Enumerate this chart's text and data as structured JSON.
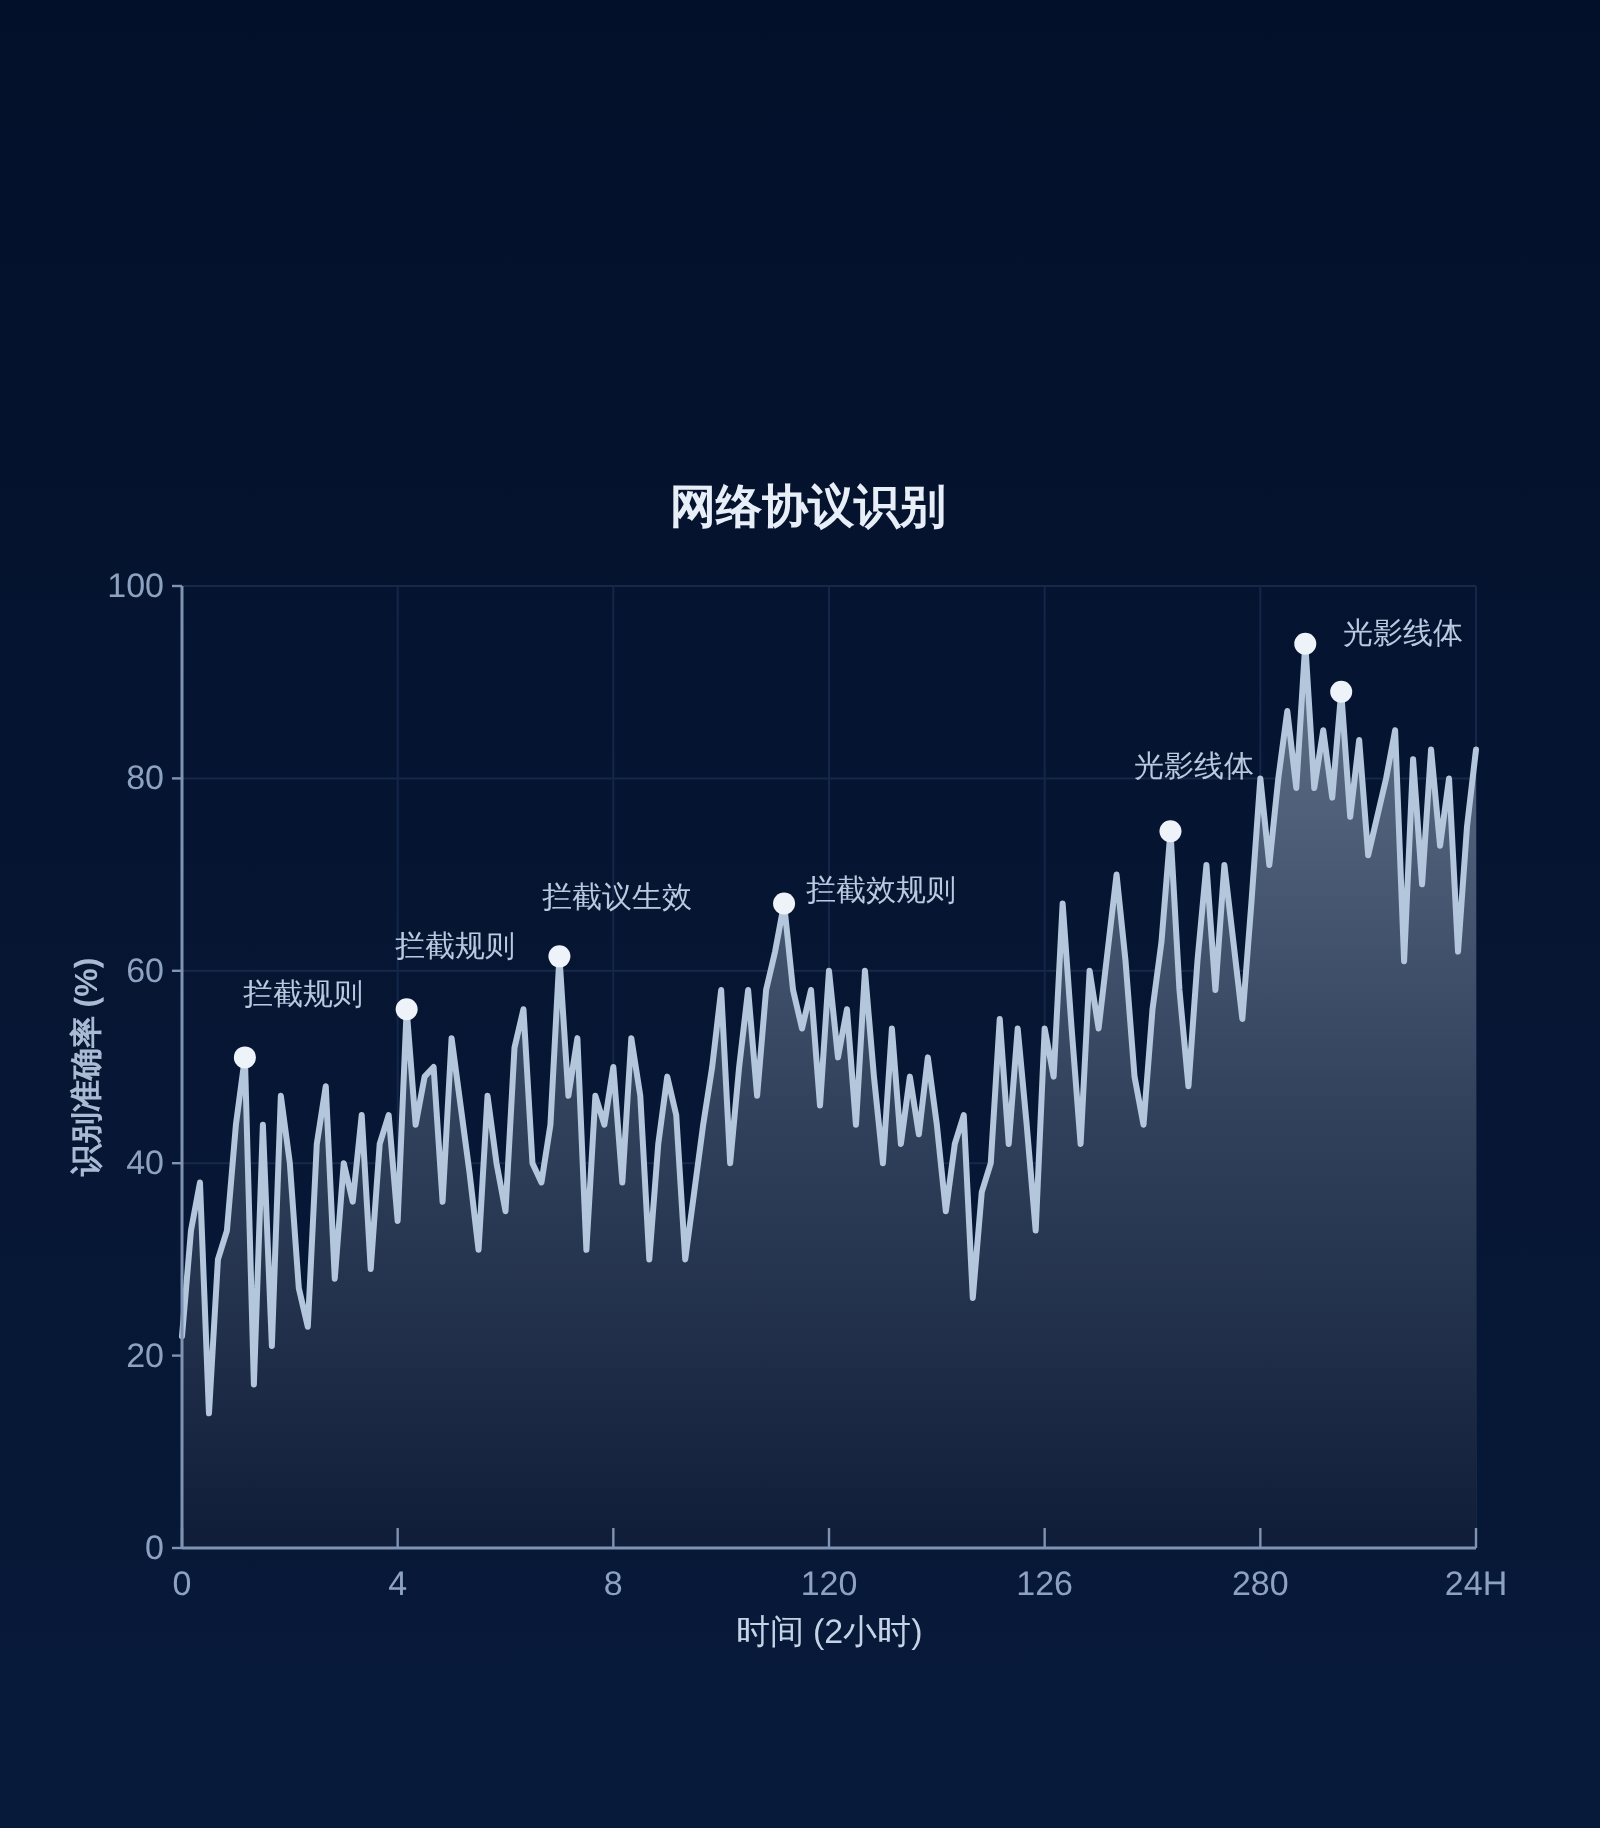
{
  "chart_data": {
    "type": "area",
    "title": "网络协议识别",
    "xlabel": "时间 (2小时)",
    "ylabel": "识别准确率 (%)",
    "categories": [
      "0",
      null,
      null,
      null,
      null,
      null,
      null,
      null,
      null,
      null,
      null,
      null,
      null,
      null,
      null,
      null,
      null,
      null,
      null,
      null,
      null,
      null,
      null,
      null,
      "4",
      null,
      null,
      null,
      null,
      null,
      null,
      null,
      null,
      null,
      null,
      null,
      null,
      null,
      null,
      null,
      null,
      null,
      null,
      null,
      null,
      null,
      null,
      null,
      "8",
      null,
      null,
      null,
      null,
      null,
      null,
      null,
      null,
      null,
      null,
      null,
      null,
      null,
      null,
      null,
      null,
      null,
      null,
      null,
      null,
      null,
      null,
      null,
      "120",
      null,
      null,
      null,
      null,
      null,
      null,
      null,
      null,
      null,
      null,
      null,
      null,
      null,
      null,
      null,
      null,
      null,
      null,
      null,
      null,
      null,
      null,
      null,
      "126",
      null,
      null,
      null,
      null,
      null,
      null,
      null,
      null,
      null,
      null,
      null,
      null,
      null,
      null,
      null,
      null,
      null,
      null,
      null,
      null,
      null,
      null,
      null,
      "280",
      null,
      null,
      null,
      null,
      null,
      null,
      null,
      null,
      null,
      null,
      null,
      null,
      null,
      null,
      null,
      null,
      null,
      null,
      null,
      null,
      null,
      null,
      null,
      "24H"
    ],
    "ylim": [
      0,
      100
    ],
    "yticks": [
      0,
      20,
      40,
      60,
      80,
      100
    ],
    "grid": true,
    "series": [
      {
        "color": "#b4c6dc",
        "line_style": "solid",
        "values": [
          22,
          33,
          38,
          14,
          30,
          33,
          44,
          51,
          17,
          44,
          21,
          47,
          40,
          27,
          23,
          42,
          48,
          28,
          40,
          36,
          45,
          29,
          42,
          45,
          34,
          56,
          44,
          49,
          50,
          36,
          53,
          46,
          39,
          31,
          47,
          40,
          35,
          52,
          56,
          40,
          38,
          44,
          61.5,
          47,
          53,
          31,
          47,
          44,
          50,
          38,
          53,
          47,
          30,
          42,
          49,
          45,
          30,
          37,
          44,
          50,
          58,
          40,
          50,
          58,
          47,
          58,
          62,
          67,
          58,
          54,
          58,
          46,
          60,
          51,
          56,
          44,
          60,
          49,
          40,
          54,
          42,
          49,
          43,
          51,
          44,
          35,
          42,
          45,
          26,
          37,
          40,
          55,
          42,
          54,
          44,
          33,
          54,
          49,
          67,
          54,
          42,
          60,
          54,
          62,
          70,
          61,
          49,
          44,
          56,
          63,
          74.5,
          58,
          48,
          61,
          71,
          58,
          71,
          63,
          55,
          67,
          80,
          71,
          80,
          87,
          79,
          94,
          79,
          85,
          78,
          89,
          76,
          84,
          72,
          76,
          80,
          85,
          61,
          82,
          69,
          83,
          73,
          80,
          62,
          75,
          83
        ]
      },
      {
        "type": "scatter",
        "color": "#eef3fa",
        "marker": "circle",
        "values": [
          null,
          null,
          null,
          null,
          null,
          null,
          null,
          51,
          null,
          null,
          null,
          null,
          null,
          null,
          null,
          null,
          null,
          null,
          null,
          null,
          null,
          null,
          null,
          null,
          null,
          56,
          null,
          null,
          null,
          null,
          null,
          null,
          null,
          null,
          null,
          null,
          null,
          null,
          null,
          null,
          null,
          null,
          61.5,
          null,
          null,
          null,
          null,
          null,
          null,
          null,
          null,
          null,
          null,
          null,
          null,
          null,
          null,
          null,
          null,
          null,
          null,
          null,
          null,
          null,
          null,
          null,
          null,
          67,
          null,
          null,
          null,
          null,
          null,
          null,
          null,
          null,
          null,
          null,
          null,
          null,
          null,
          null,
          null,
          null,
          null,
          null,
          null,
          null,
          null,
          null,
          null,
          null,
          null,
          null,
          null,
          null,
          null,
          null,
          null,
          null,
          null,
          null,
          null,
          null,
          null,
          null,
          null,
          null,
          null,
          null,
          74.5,
          null,
          null,
          null,
          null,
          null,
          null,
          null,
          null,
          null,
          null,
          null,
          null,
          null,
          null,
          94,
          null,
          null,
          null,
          89,
          null,
          null,
          null,
          null,
          null,
          null,
          null,
          null,
          null,
          null,
          null,
          null,
          null,
          null,
          null
        ]
      }
    ],
    "annotations": [
      "拦截规则",
      "拦截规则",
      "拦截议生效",
      "拦截效规则",
      "光影线体",
      "光影线体"
    ]
  }
}
